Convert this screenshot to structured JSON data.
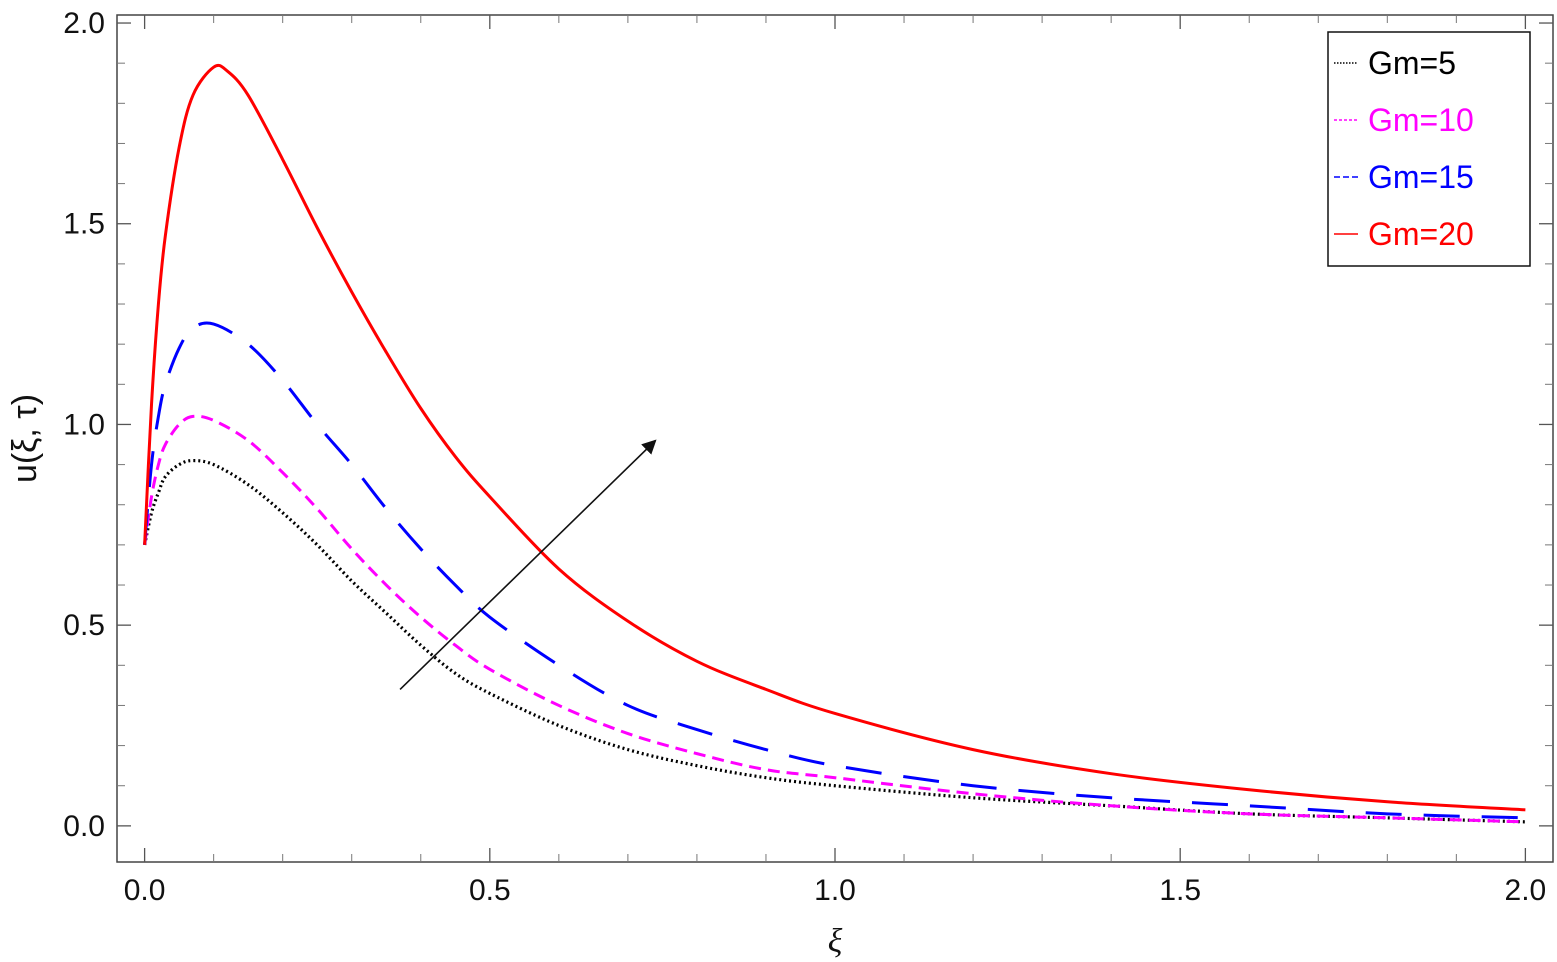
{
  "chart_data": {
    "type": "line",
    "title": "",
    "xlabel": "ξ",
    "ylabel": "u(ξ, τ)",
    "xlim": [
      -0.04,
      2.04
    ],
    "ylim": [
      -0.09,
      2.02
    ],
    "grid": false,
    "x_ticks": [
      0.0,
      0.5,
      1.0,
      1.5,
      2.0
    ],
    "x_tick_labels": [
      "0.0",
      "0.5",
      "1.0",
      "1.5",
      "2.0"
    ],
    "y_ticks": [
      0.0,
      0.5,
      1.0,
      1.5,
      2.0
    ],
    "y_tick_labels": [
      "0.0",
      "0.5",
      "1.0",
      "1.5",
      "2.0"
    ],
    "legend_position": "top-right",
    "annotations": [
      {
        "type": "arrow",
        "from": [
          0.37,
          0.34
        ],
        "to": [
          0.74,
          0.96
        ],
        "meaning": "increasing Gm"
      }
    ],
    "series": [
      {
        "name": "Gm=5",
        "color": "#000000",
        "style": "dotted",
        "x": [
          0,
          0.01,
          0.02,
          0.03,
          0.05,
          0.07,
          0.1,
          0.15,
          0.2,
          0.25,
          0.3,
          0.35,
          0.4,
          0.45,
          0.5,
          0.6,
          0.7,
          0.8,
          0.9,
          1.0,
          1.2,
          1.4,
          1.6,
          1.8,
          2.0
        ],
        "y": [
          0.7,
          0.78,
          0.83,
          0.87,
          0.9,
          0.91,
          0.9,
          0.85,
          0.78,
          0.7,
          0.61,
          0.53,
          0.45,
          0.38,
          0.33,
          0.25,
          0.19,
          0.15,
          0.12,
          0.1,
          0.07,
          0.05,
          0.03,
          0.02,
          0.01
        ]
      },
      {
        "name": "Gm=10",
        "color": "#ff00ff",
        "style": "short-dashed",
        "x": [
          0,
          0.01,
          0.02,
          0.03,
          0.05,
          0.07,
          0.1,
          0.15,
          0.2,
          0.25,
          0.3,
          0.35,
          0.4,
          0.45,
          0.5,
          0.6,
          0.7,
          0.8,
          0.9,
          1.0,
          1.2,
          1.4,
          1.6,
          1.8,
          2.0
        ],
        "y": [
          0.7,
          0.82,
          0.9,
          0.95,
          1.0,
          1.02,
          1.01,
          0.96,
          0.88,
          0.79,
          0.69,
          0.6,
          0.52,
          0.45,
          0.39,
          0.3,
          0.23,
          0.18,
          0.14,
          0.12,
          0.08,
          0.05,
          0.03,
          0.02,
          0.01
        ]
      },
      {
        "name": "Gm=15",
        "color": "#0000ff",
        "style": "long-dashed",
        "x": [
          0,
          0.01,
          0.02,
          0.03,
          0.05,
          0.07,
          0.1,
          0.15,
          0.2,
          0.25,
          0.3,
          0.35,
          0.4,
          0.45,
          0.5,
          0.6,
          0.7,
          0.8,
          0.9,
          1.0,
          1.2,
          1.4,
          1.6,
          1.8,
          2.0
        ],
        "y": [
          0.7,
          0.9,
          1.02,
          1.1,
          1.19,
          1.24,
          1.25,
          1.2,
          1.11,
          1.0,
          0.9,
          0.79,
          0.69,
          0.6,
          0.52,
          0.4,
          0.3,
          0.24,
          0.19,
          0.15,
          0.1,
          0.07,
          0.05,
          0.03,
          0.02
        ]
      },
      {
        "name": "Gm=20",
        "color": "#ff0000",
        "style": "solid",
        "x": [
          0,
          0.01,
          0.02,
          0.03,
          0.05,
          0.07,
          0.1,
          0.12,
          0.15,
          0.2,
          0.25,
          0.3,
          0.35,
          0.4,
          0.45,
          0.5,
          0.6,
          0.7,
          0.8,
          0.9,
          1.0,
          1.2,
          1.4,
          1.6,
          1.8,
          2.0
        ],
        "y": [
          0.7,
          1.05,
          1.3,
          1.47,
          1.69,
          1.82,
          1.89,
          1.88,
          1.82,
          1.66,
          1.49,
          1.33,
          1.18,
          1.04,
          0.92,
          0.82,
          0.64,
          0.51,
          0.41,
          0.34,
          0.28,
          0.19,
          0.13,
          0.09,
          0.06,
          0.04
        ]
      }
    ]
  }
}
